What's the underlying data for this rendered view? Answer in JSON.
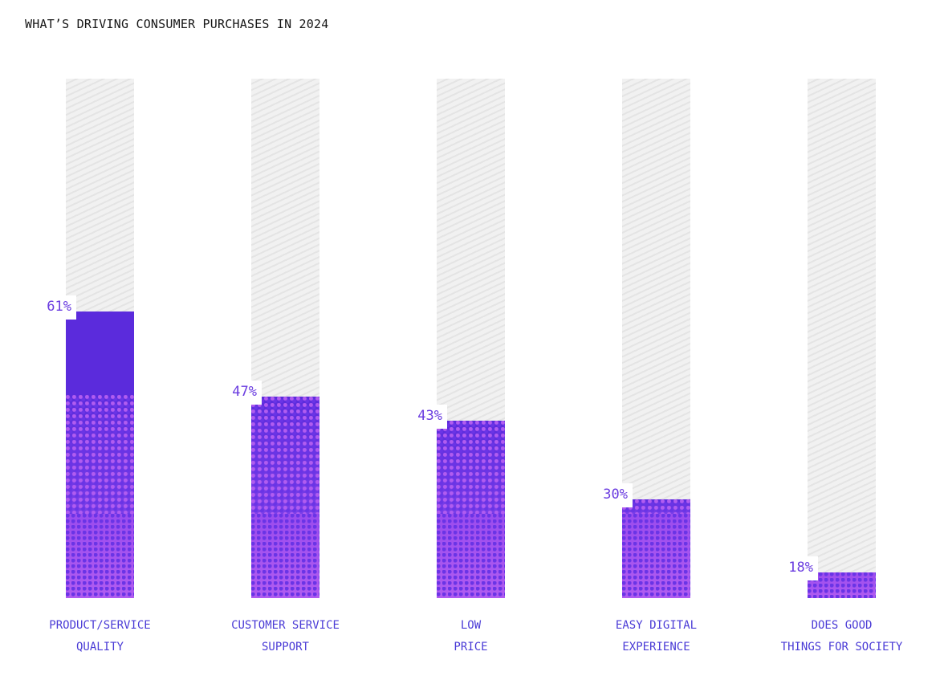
{
  "chart_data": {
    "type": "bar",
    "title": "WHAT’S DRIVING CONSUMER PURCHASES IN 2024",
    "xlabel": "",
    "ylabel": "",
    "categories": [
      [
        "PRODUCT/SERVICE",
        "QUALITY"
      ],
      [
        "CUSTOMER SERVICE",
        "SUPPORT"
      ],
      [
        "LOW",
        "PRICE"
      ],
      [
        "EASY DIGITAL",
        "EXPERIENCE"
      ],
      [
        "DOES GOOD",
        "THINGS FOR SOCIETY"
      ]
    ],
    "values": [
      61,
      47,
      43,
      30,
      18
    ],
    "value_labels": [
      "61%",
      "47%",
      "43%",
      "30%",
      "18%"
    ],
    "unit": "%",
    "ylim": [
      13.8,
      99.3
    ],
    "grid": false,
    "legend": "none",
    "colors": {
      "bar_solid": "#5b2bdc",
      "bar_pattern_light": "#b15cf0",
      "bar_pattern_dark": "#6a34e6",
      "track": "#eeeeee",
      "value_label": "#6a3ce0",
      "category_label": "#4a3bd6",
      "title": "#161616"
    }
  }
}
